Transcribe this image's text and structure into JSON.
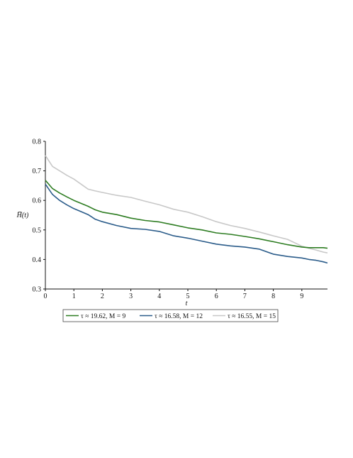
{
  "chart_data": {
    "type": "line",
    "xlabel": "t",
    "ylabel": "H̅(t)",
    "xlim": [
      0,
      9.9
    ],
    "ylim": [
      0.3,
      0.8
    ],
    "xticks": [
      0,
      1,
      2,
      3,
      4,
      5,
      6,
      7,
      8,
      9
    ],
    "yticks": [
      0.3,
      0.4,
      0.5,
      0.6,
      0.7,
      0.8
    ],
    "ytick_labels": [
      "0.3",
      "0.4",
      "0.5",
      "0.6",
      "0.7",
      "0.8"
    ],
    "grid": false,
    "legend_position": "bottom",
    "x": [
      0,
      0.25,
      0.5,
      0.75,
      1,
      1.25,
      1.5,
      1.75,
      2,
      2.5,
      3,
      3.5,
      4,
      4.5,
      5,
      5.5,
      6,
      6.5,
      7,
      7.5,
      8,
      8.5,
      9,
      9.25,
      9.5,
      9.75,
      9.9
    ],
    "series": [
      {
        "name": "τ ≈ 19.62, M = 9",
        "color": "#2e7d22",
        "values": [
          0.668,
          0.64,
          0.625,
          0.612,
          0.6,
          0.59,
          0.58,
          0.568,
          0.56,
          0.552,
          0.54,
          0.532,
          0.527,
          0.517,
          0.507,
          0.5,
          0.49,
          0.485,
          0.478,
          0.47,
          0.46,
          0.45,
          0.442,
          0.44,
          0.44,
          0.44,
          0.438
        ]
      },
      {
        "name": "τ ≈ 16.58, M = 12",
        "color": "#2b5c8a",
        "values": [
          0.655,
          0.62,
          0.6,
          0.585,
          0.572,
          0.562,
          0.552,
          0.536,
          0.528,
          0.515,
          0.505,
          0.502,
          0.495,
          0.48,
          0.472,
          0.462,
          0.452,
          0.446,
          0.442,
          0.435,
          0.418,
          0.41,
          0.405,
          0.4,
          0.397,
          0.392,
          0.388
        ]
      },
      {
        "name": "τ ≈ 16.55, M = 15",
        "color": "#c8c8c8",
        "values": [
          0.752,
          0.715,
          0.7,
          0.685,
          0.672,
          0.655,
          0.638,
          0.632,
          0.627,
          0.617,
          0.61,
          0.597,
          0.585,
          0.57,
          0.56,
          0.545,
          0.528,
          0.515,
          0.505,
          0.493,
          0.48,
          0.468,
          0.445,
          0.438,
          0.432,
          0.425,
          0.422
        ]
      }
    ]
  }
}
